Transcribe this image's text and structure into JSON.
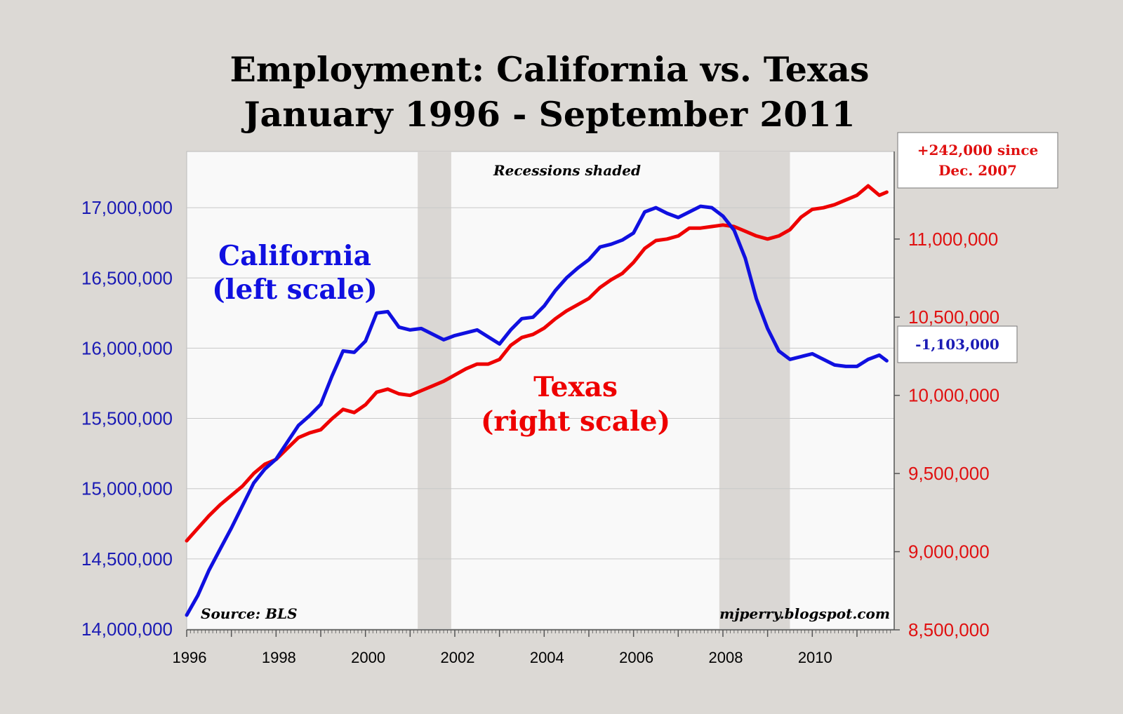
{
  "title_line1": "Employment: California vs. Texas",
  "title_line2": "January 1996 - September 2011",
  "recessions_note": "Recessions shaded",
  "source_note": "Source: BLS",
  "site_note": "mjperry.blogspot.com",
  "california_label": [
    "California",
    "(left scale)"
  ],
  "texas_label": [
    "Texas",
    "(right scale)"
  ],
  "texas_callout": [
    "+242,000 since",
    "Dec. 2007"
  ],
  "california_callout": "-1,103,000",
  "colors": {
    "california": "#1010e0",
    "texas": "#ee0000",
    "left_axis_text": "#1b1bb4",
    "right_axis_text": "#e01010",
    "recession_shade": "#dad7d4",
    "plot_bg": "#f9f9f9",
    "page_bg": "#dcd9d5"
  },
  "chart_data": {
    "type": "line",
    "title": "Employment: California vs. Texas January 1996 - September 2011",
    "x_ticks": [
      1996,
      1998,
      2000,
      2002,
      2004,
      2006,
      2008,
      2010
    ],
    "x_tick_labels": [
      "1996",
      "1998",
      "2000",
      "2002",
      "2004",
      "2006",
      "2008",
      "2010"
    ],
    "xlim": [
      1996.0,
      2011.833
    ],
    "y_left": {
      "ylim": [
        13995000,
        17400000
      ],
      "ticks": [
        14000000,
        14500000,
        15000000,
        15500000,
        16000000,
        16500000,
        17000000
      ],
      "tick_labels": [
        "14,000,000",
        "14,500,000",
        "15,000,000",
        "15,500,000",
        "16,000,000",
        "16,500,000",
        "17,000,000"
      ]
    },
    "y_right": {
      "ylim": [
        8500000,
        11560000
      ],
      "ticks": [
        8500000,
        9000000,
        9500000,
        10000000,
        10500000,
        11000000
      ],
      "tick_labels": [
        "8,500,000",
        "9,000,000",
        "9,500,000",
        "10,000,000",
        "10,500,000",
        "11,000,000"
      ]
    },
    "recessions": [
      [
        2001.17,
        2001.92
      ],
      [
        2007.92,
        2009.5
      ]
    ],
    "grid": "horizontal",
    "series": [
      {
        "name": "California",
        "axis": "left",
        "x": [
          1996.0,
          1996.25,
          1996.5,
          1996.75,
          1997.0,
          1997.25,
          1997.5,
          1997.75,
          1998.0,
          1998.25,
          1998.5,
          1998.75,
          1999.0,
          1999.25,
          1999.5,
          1999.75,
          2000.0,
          2000.25,
          2000.5,
          2000.75,
          2001.0,
          2001.25,
          2001.5,
          2001.75,
          2002.0,
          2002.25,
          2002.5,
          2002.75,
          2003.0,
          2003.25,
          2003.5,
          2003.75,
          2004.0,
          2004.25,
          2004.5,
          2004.75,
          2005.0,
          2005.25,
          2005.5,
          2005.75,
          2006.0,
          2006.25,
          2006.5,
          2006.75,
          2007.0,
          2007.25,
          2007.5,
          2007.75,
          2008.0,
          2008.25,
          2008.5,
          2008.75,
          2009.0,
          2009.25,
          2009.5,
          2009.75,
          2010.0,
          2010.25,
          2010.5,
          2010.75,
          2011.0,
          2011.25,
          2011.5,
          2011.667
        ],
        "values": [
          14100000,
          14240000,
          14420000,
          14570000,
          14720000,
          14880000,
          15040000,
          15140000,
          15210000,
          15330000,
          15450000,
          15520000,
          15600000,
          15800000,
          15980000,
          15970000,
          16050000,
          16250000,
          16260000,
          16150000,
          16130000,
          16140000,
          16100000,
          16060000,
          16090000,
          16110000,
          16130000,
          16080000,
          16030000,
          16130000,
          16210000,
          16220000,
          16300000,
          16410000,
          16500000,
          16570000,
          16630000,
          16720000,
          16740000,
          16770000,
          16820000,
          16970000,
          17000000,
          16960000,
          16930000,
          16970000,
          17010000,
          17000000,
          16940000,
          16840000,
          16640000,
          16350000,
          16140000,
          15980000,
          15920000,
          15940000,
          15960000,
          15920000,
          15880000,
          15870000,
          15870000,
          15920000,
          15950000,
          15910000
        ]
      },
      {
        "name": "Texas",
        "axis": "right",
        "x": [
          1996.0,
          1996.25,
          1996.5,
          1996.75,
          1997.0,
          1997.25,
          1997.5,
          1997.75,
          1998.0,
          1998.25,
          1998.5,
          1998.75,
          1999.0,
          1999.25,
          1999.5,
          1999.75,
          2000.0,
          2000.25,
          2000.5,
          2000.75,
          2001.0,
          2001.25,
          2001.5,
          2001.75,
          2002.0,
          2002.25,
          2002.5,
          2002.75,
          2003.0,
          2003.25,
          2003.5,
          2003.75,
          2004.0,
          2004.25,
          2004.5,
          2004.75,
          2005.0,
          2005.25,
          2005.5,
          2005.75,
          2006.0,
          2006.25,
          2006.5,
          2006.75,
          2007.0,
          2007.25,
          2007.5,
          2007.75,
          2008.0,
          2008.25,
          2008.5,
          2008.75,
          2009.0,
          2009.25,
          2009.5,
          2009.75,
          2010.0,
          2010.25,
          2010.5,
          2010.75,
          2011.0,
          2011.25,
          2011.5,
          2011.667
        ],
        "values": [
          9070000,
          9150000,
          9230000,
          9300000,
          9360000,
          9420000,
          9500000,
          9560000,
          9590000,
          9660000,
          9730000,
          9760000,
          9780000,
          9850000,
          9910000,
          9890000,
          9940000,
          10020000,
          10040000,
          10010000,
          10000000,
          10030000,
          10060000,
          10090000,
          10130000,
          10170000,
          10200000,
          10200000,
          10230000,
          10320000,
          10370000,
          10390000,
          10430000,
          10490000,
          10540000,
          10580000,
          10620000,
          10690000,
          10740000,
          10780000,
          10850000,
          10940000,
          10990000,
          11000000,
          11020000,
          11070000,
          11070000,
          11080000,
          11090000,
          11080000,
          11050000,
          11020000,
          11000000,
          11020000,
          11060000,
          11140000,
          11190000,
          11200000,
          11220000,
          11250000,
          11280000,
          11340000,
          11280000,
          11300000
        ]
      }
    ]
  }
}
